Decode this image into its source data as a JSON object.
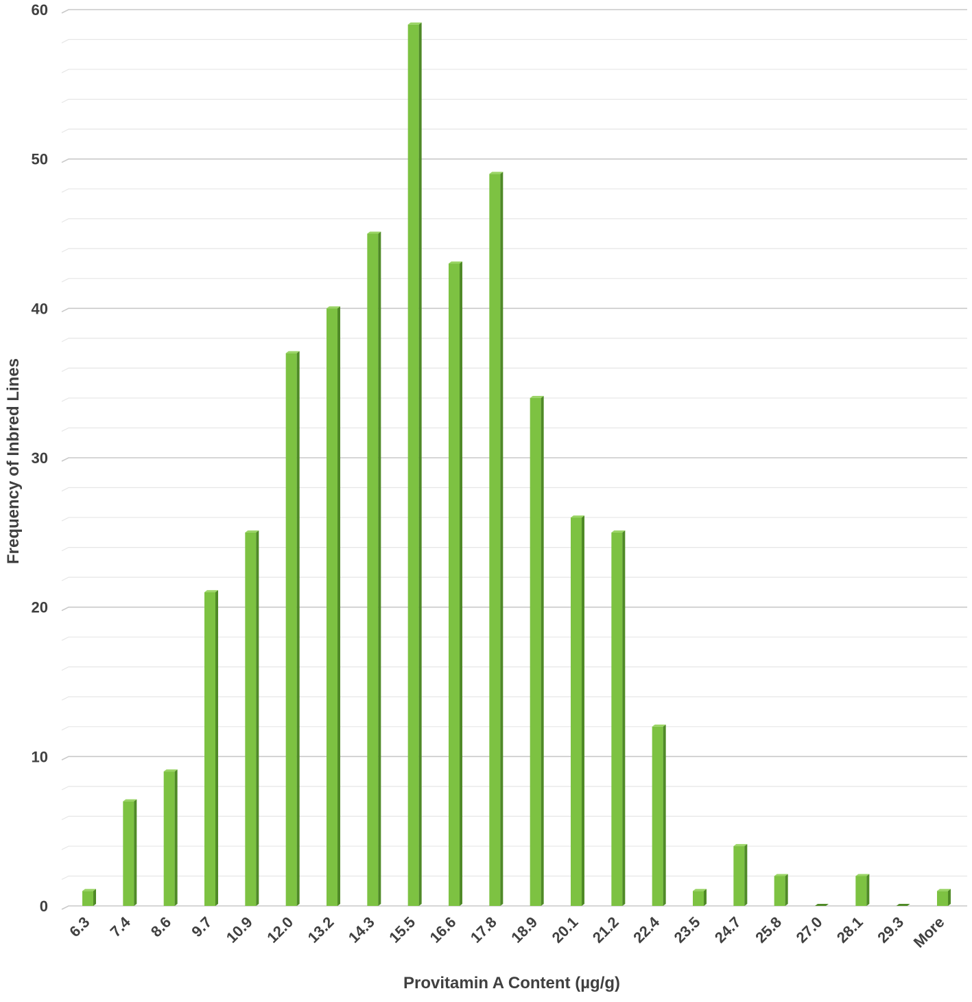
{
  "chart_data": {
    "type": "bar",
    "title": "",
    "xlabel": "Provitamin A Content (µg/g)",
    "ylabel": "Frequency of Inbred Lines",
    "categories": [
      "6.3",
      "7.4",
      "8.6",
      "9.7",
      "10.9",
      "12.0",
      "13.2",
      "14.3",
      "15.5",
      "16.6",
      "17.8",
      "18.9",
      "20.1",
      "21.2",
      "22.4",
      "23.5",
      "24.7",
      "25.8",
      "27.0",
      "28.1",
      "29.3",
      "More"
    ],
    "values": [
      1,
      7,
      9,
      21,
      25,
      37,
      40,
      45,
      59,
      43,
      49,
      34,
      26,
      25,
      12,
      1,
      4,
      2,
      0,
      2,
      0,
      1
    ],
    "ylim": [
      0,
      60
    ],
    "yticks": [
      0,
      10,
      20,
      30,
      40,
      50,
      60
    ],
    "grid": true,
    "legend": "none",
    "colors": {
      "bar_front": "#7dc242",
      "bar_side": "#4f8a27",
      "bar_top": "#9ad465",
      "grid_major": "#c8c8c8",
      "grid_minor": "#e6e6e6"
    }
  }
}
